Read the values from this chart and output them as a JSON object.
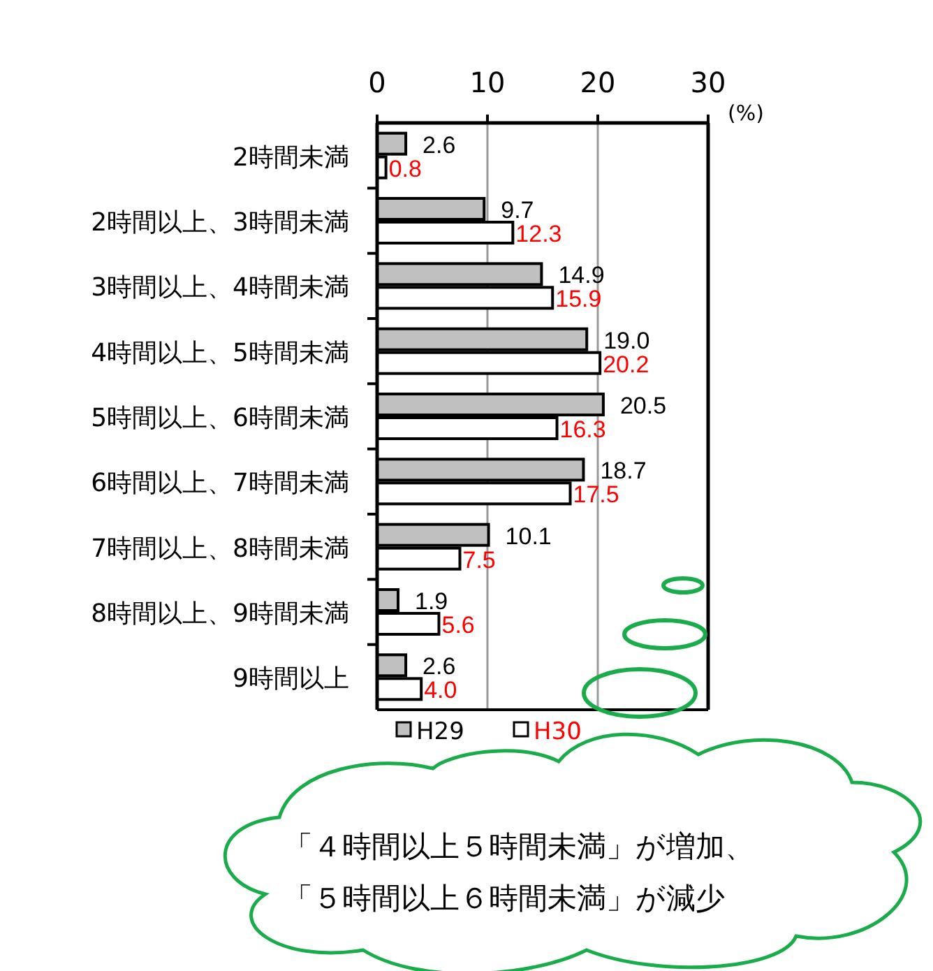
{
  "chart_data": {
    "type": "bar",
    "orientation": "horizontal",
    "xlabel": "(%)",
    "categories": [
      "2時間未満",
      "2時間以上、3時間未満",
      "3時間以上、4時間未満",
      "4時間以上、5時間未満",
      "5時間以上、6時間未満",
      "6時間以上、7時間未満",
      "7時間以上、8時間未満",
      "8時間以上、9時間未満",
      "9時間以上"
    ],
    "series": [
      {
        "name": "H29",
        "color": "#c0c0c0",
        "values": [
          2.6,
          9.7,
          14.9,
          19.0,
          20.5,
          18.7,
          10.1,
          1.9,
          2.6
        ],
        "value_labels": [
          "2.6",
          "9.7",
          "14.9",
          "19.0",
          "20.5",
          "18.7",
          "10.1",
          "1.9",
          "2.6"
        ]
      },
      {
        "name": "H30",
        "color": "#ffffff",
        "values": [
          0.8,
          12.3,
          15.9,
          20.2,
          16.3,
          17.5,
          7.5,
          5.6,
          4.0
        ],
        "value_labels": [
          "0.8",
          "12.3",
          "15.9",
          "20.2",
          "16.3",
          "17.5",
          "7.5",
          "5.6",
          "4.0"
        ]
      }
    ],
    "xlim": [
      0,
      30
    ],
    "xticks": [
      0,
      10,
      20,
      30
    ],
    "grid": "x",
    "legend": "bottom",
    "annotations": [
      "「４時間以上５時間未満」が増加、",
      "「５時間以上６時間未満」が減少"
    ]
  }
}
